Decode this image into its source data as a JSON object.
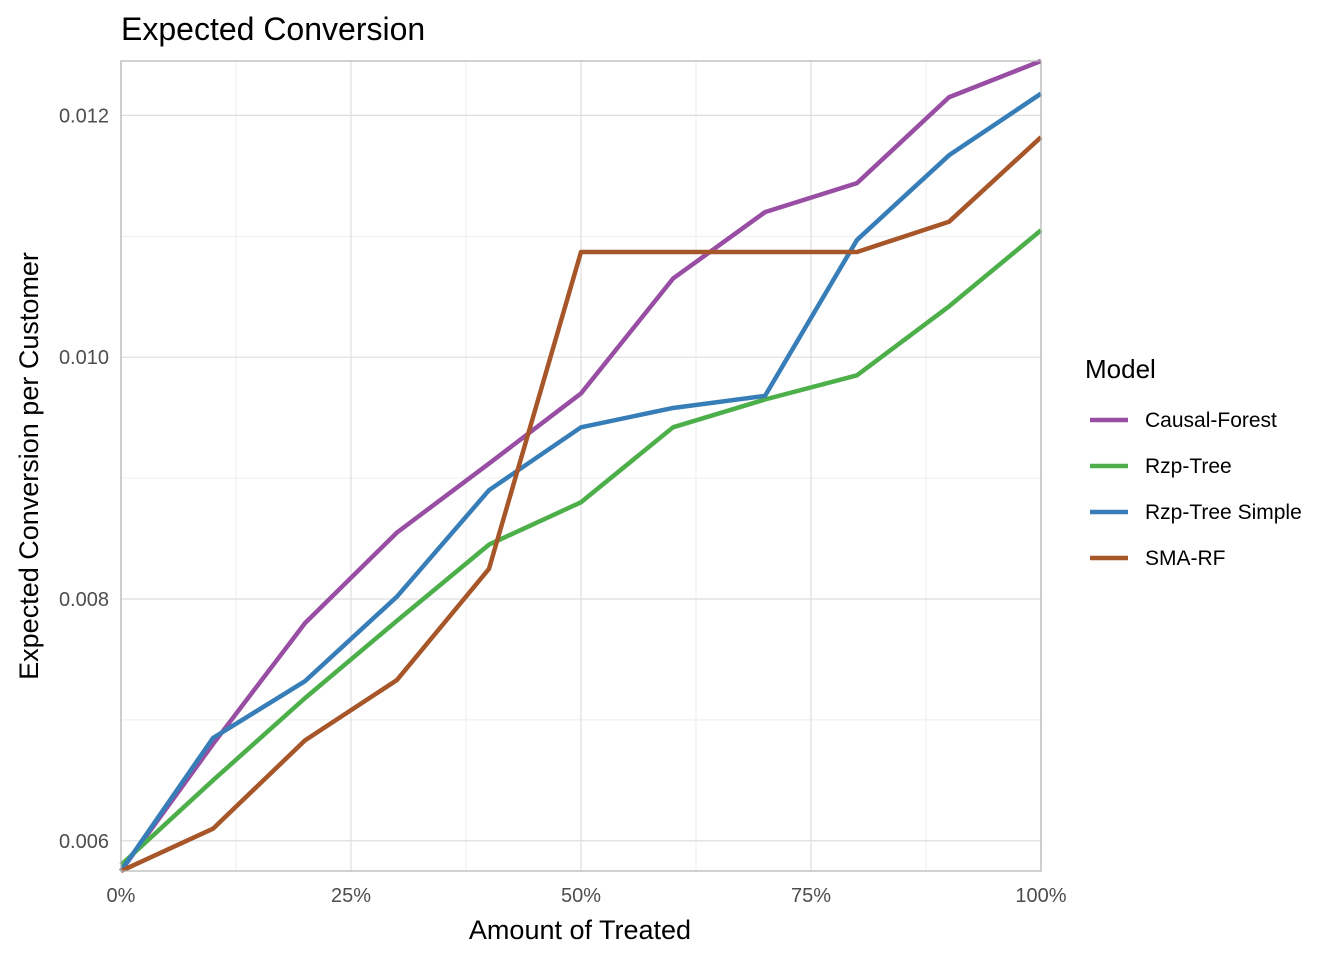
{
  "chart_data": {
    "type": "line",
    "title": "Expected Conversion",
    "xlabel": "Amount of Treated",
    "ylabel": "Expected Conversion per Customer",
    "x": [
      0,
      0.1,
      0.2,
      0.3,
      0.4,
      0.5,
      0.6,
      0.7,
      0.8,
      0.9,
      1.0
    ],
    "xlim": [
      0,
      1
    ],
    "ylim": [
      0.00575,
      0.01245
    ],
    "x_ticks": [
      0,
      0.25,
      0.5,
      0.75,
      1.0
    ],
    "x_tick_labels": [
      "0%",
      "25%",
      "50%",
      "75%",
      "100%"
    ],
    "y_ticks": [
      0.006,
      0.008,
      0.01,
      0.012
    ],
    "y_tick_labels": [
      "0.006",
      "0.008",
      "0.010",
      "0.012"
    ],
    "grid": true,
    "legend": {
      "title": "Model",
      "position": "right"
    },
    "series": [
      {
        "name": "Causal-Forest",
        "color": "#984ea3",
        "values": [
          0.00575,
          0.0068,
          0.0078,
          0.00855,
          0.00912,
          0.0097,
          0.01065,
          0.0112,
          0.01144,
          0.01215,
          0.01245
        ]
      },
      {
        "name": "Rzp-Tree",
        "color": "#4daf4a",
        "values": [
          0.0058,
          0.0065,
          0.00718,
          0.00782,
          0.00845,
          0.0088,
          0.00942,
          0.00965,
          0.00985,
          0.01042,
          0.01105
        ]
      },
      {
        "name": "Rzp-Tree Simple",
        "color": "#377eb8",
        "values": [
          0.00575,
          0.00685,
          0.00732,
          0.00802,
          0.0089,
          0.00942,
          0.00958,
          0.00968,
          0.01097,
          0.01167,
          0.01218
        ]
      },
      {
        "name": "SMA-RF",
        "color": "#a65628",
        "values": [
          0.00575,
          0.0061,
          0.00683,
          0.00733,
          0.00825,
          0.01087,
          0.01087,
          0.01087,
          0.01087,
          0.01112,
          0.01182
        ]
      }
    ]
  }
}
